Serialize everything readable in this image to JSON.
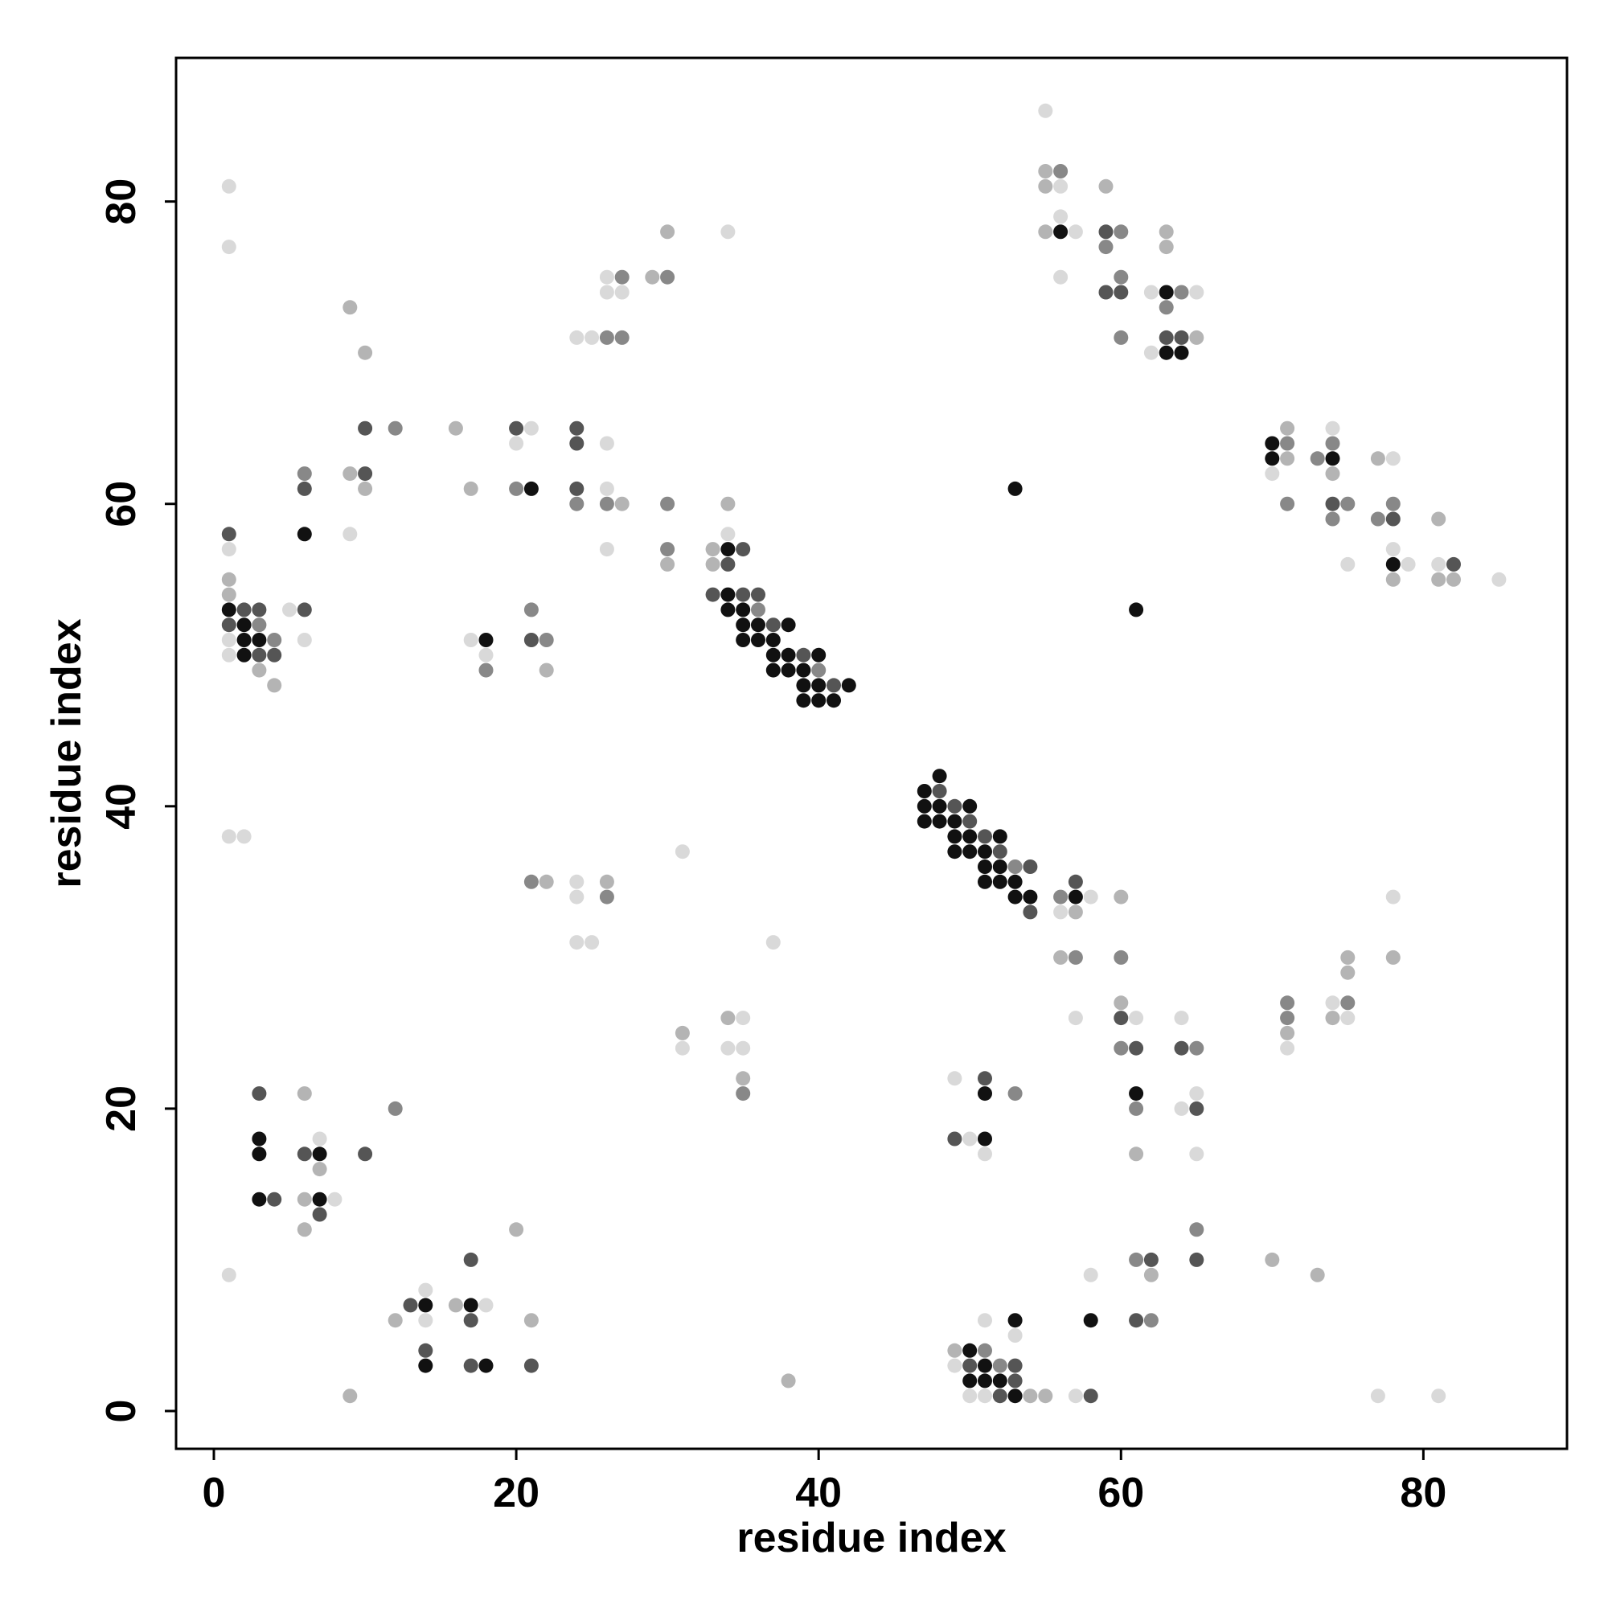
{
  "chart_data": {
    "type": "scatter",
    "title": "",
    "xlabel": "residue index",
    "ylabel": "residue index",
    "xlim": [
      -2.5,
      89.5
    ],
    "ylim": [
      -2.5,
      89.5
    ],
    "xticks": [
      0,
      20,
      40,
      60,
      80
    ],
    "yticks": [
      0,
      20,
      40,
      60,
      80
    ],
    "grid": false,
    "legend": "none",
    "colors": {
      "level_1": "#111111",
      "level_2": "#555555",
      "level_3": "#888888",
      "level_4": "#b4b4b4",
      "level_5": "#d9d9d9"
    },
    "points": [
      [
        1,
        81,
        5
      ],
      [
        1,
        77,
        5
      ],
      [
        1,
        58,
        2
      ],
      [
        1,
        57,
        5
      ],
      [
        1,
        55,
        4
      ],
      [
        1,
        54,
        4
      ],
      [
        1,
        53,
        1
      ],
      [
        1,
        52,
        2
      ],
      [
        1,
        51,
        5
      ],
      [
        1,
        50,
        5
      ],
      [
        1,
        38,
        5
      ],
      [
        1,
        9,
        5
      ],
      [
        2,
        53,
        2
      ],
      [
        2,
        52,
        1
      ],
      [
        2,
        51,
        1
      ],
      [
        2,
        50,
        1
      ],
      [
        2,
        38,
        5
      ],
      [
        3,
        53,
        2
      ],
      [
        3,
        52,
        3
      ],
      [
        3,
        51,
        1
      ],
      [
        3,
        50,
        2
      ],
      [
        3,
        49,
        4
      ],
      [
        3,
        21,
        2
      ],
      [
        3,
        18,
        1
      ],
      [
        3,
        17,
        1
      ],
      [
        3,
        14,
        1
      ],
      [
        4,
        51,
        3
      ],
      [
        4,
        50,
        2
      ],
      [
        4,
        48,
        4
      ],
      [
        4,
        14,
        2
      ],
      [
        5,
        53,
        5
      ],
      [
        6,
        62,
        3
      ],
      [
        6,
        61,
        2
      ],
      [
        6,
        58,
        1
      ],
      [
        6,
        53,
        2
      ],
      [
        6,
        51,
        5
      ],
      [
        6,
        21,
        4
      ],
      [
        6,
        17,
        2
      ],
      [
        6,
        14,
        4
      ],
      [
        6,
        12,
        4
      ],
      [
        7,
        18,
        5
      ],
      [
        7,
        17,
        1
      ],
      [
        7,
        16,
        4
      ],
      [
        7,
        14,
        1
      ],
      [
        7,
        13,
        2
      ],
      [
        8,
        14,
        5
      ],
      [
        9,
        73,
        4
      ],
      [
        9,
        62,
        4
      ],
      [
        9,
        58,
        5
      ],
      [
        9,
        1,
        4
      ],
      [
        10,
        70,
        4
      ],
      [
        10,
        65,
        2
      ],
      [
        10,
        62,
        2
      ],
      [
        10,
        61,
        4
      ],
      [
        10,
        17,
        2
      ],
      [
        12,
        65,
        3
      ],
      [
        12,
        20,
        3
      ],
      [
        12,
        6,
        4
      ],
      [
        13,
        7,
        2
      ],
      [
        14,
        8,
        5
      ],
      [
        14,
        7,
        1
      ],
      [
        14,
        6,
        5
      ],
      [
        14,
        4,
        2
      ],
      [
        14,
        3,
        1
      ],
      [
        16,
        65,
        4
      ],
      [
        16,
        7,
        4
      ],
      [
        17,
        61,
        4
      ],
      [
        17,
        51,
        5
      ],
      [
        17,
        10,
        2
      ],
      [
        17,
        7,
        1
      ],
      [
        17,
        6,
        2
      ],
      [
        17,
        3,
        2
      ],
      [
        18,
        51,
        1
      ],
      [
        18,
        50,
        5
      ],
      [
        18,
        49,
        3
      ],
      [
        18,
        7,
        5
      ],
      [
        18,
        3,
        1
      ],
      [
        20,
        65,
        2
      ],
      [
        20,
        64,
        5
      ],
      [
        20,
        61,
        3
      ],
      [
        20,
        12,
        4
      ],
      [
        21,
        65,
        5
      ],
      [
        21,
        61,
        1
      ],
      [
        21,
        53,
        3
      ],
      [
        21,
        51,
        2
      ],
      [
        21,
        35,
        3
      ],
      [
        21,
        6,
        4
      ],
      [
        21,
        3,
        2
      ],
      [
        22,
        51,
        3
      ],
      [
        22,
        49,
        4
      ],
      [
        22,
        35,
        4
      ],
      [
        24,
        71,
        5
      ],
      [
        24,
        65,
        2
      ],
      [
        24,
        64,
        2
      ],
      [
        24,
        61,
        2
      ],
      [
        24,
        60,
        3
      ],
      [
        24,
        35,
        5
      ],
      [
        24,
        34,
        5
      ],
      [
        24,
        31,
        5
      ],
      [
        25,
        71,
        5
      ],
      [
        25,
        31,
        5
      ],
      [
        26,
        75,
        5
      ],
      [
        26,
        74,
        5
      ],
      [
        26,
        71,
        3
      ],
      [
        26,
        64,
        5
      ],
      [
        26,
        61,
        5
      ],
      [
        26,
        60,
        3
      ],
      [
        26,
        57,
        5
      ],
      [
        26,
        35,
        4
      ],
      [
        26,
        34,
        3
      ],
      [
        27,
        75,
        3
      ],
      [
        27,
        74,
        5
      ],
      [
        27,
        71,
        3
      ],
      [
        27,
        60,
        4
      ],
      [
        29,
        75,
        4
      ],
      [
        30,
        78,
        4
      ],
      [
        30,
        75,
        3
      ],
      [
        30,
        60,
        3
      ],
      [
        30,
        57,
        3
      ],
      [
        30,
        56,
        4
      ],
      [
        31,
        37,
        5
      ],
      [
        31,
        25,
        4
      ],
      [
        31,
        24,
        5
      ],
      [
        33,
        57,
        4
      ],
      [
        33,
        56,
        4
      ],
      [
        33,
        54,
        2
      ],
      [
        34,
        78,
        5
      ],
      [
        34,
        60,
        4
      ],
      [
        34,
        58,
        5
      ],
      [
        34,
        57,
        1
      ],
      [
        34,
        56,
        2
      ],
      [
        34,
        54,
        1
      ],
      [
        34,
        53,
        1
      ],
      [
        34,
        26,
        4
      ],
      [
        34,
        24,
        5
      ],
      [
        35,
        57,
        2
      ],
      [
        35,
        54,
        2
      ],
      [
        35,
        53,
        1
      ],
      [
        35,
        52,
        1
      ],
      [
        35,
        51,
        1
      ],
      [
        35,
        26,
        5
      ],
      [
        35,
        24,
        5
      ],
      [
        35,
        22,
        4
      ],
      [
        35,
        21,
        3
      ],
      [
        36,
        54,
        2
      ],
      [
        36,
        53,
        3
      ],
      [
        36,
        52,
        1
      ],
      [
        36,
        51,
        1
      ],
      [
        37,
        52,
        2
      ],
      [
        37,
        51,
        1
      ],
      [
        37,
        50,
        1
      ],
      [
        37,
        49,
        1
      ],
      [
        37,
        31,
        5
      ],
      [
        38,
        52,
        1
      ],
      [
        38,
        50,
        1
      ],
      [
        38,
        49,
        1
      ],
      [
        38,
        2,
        4
      ],
      [
        39,
        50,
        2
      ],
      [
        39,
        49,
        1
      ],
      [
        39,
        48,
        1
      ],
      [
        39,
        47,
        1
      ],
      [
        40,
        50,
        1
      ],
      [
        40,
        49,
        3
      ],
      [
        40,
        48,
        1
      ],
      [
        40,
        47,
        1
      ],
      [
        41,
        48,
        2
      ],
      [
        41,
        47,
        1
      ],
      [
        42,
        48,
        1
      ],
      [
        47,
        41,
        1
      ],
      [
        47,
        40,
        1
      ],
      [
        47,
        39,
        1
      ],
      [
        48,
        42,
        1
      ],
      [
        48,
        41,
        2
      ],
      [
        48,
        40,
        1
      ],
      [
        48,
        39,
        1
      ],
      [
        49,
        40,
        2
      ],
      [
        49,
        39,
        1
      ],
      [
        49,
        38,
        1
      ],
      [
        49,
        37,
        1
      ],
      [
        49,
        22,
        5
      ],
      [
        49,
        18,
        2
      ],
      [
        49,
        4,
        4
      ],
      [
        49,
        3,
        5
      ],
      [
        50,
        40,
        1
      ],
      [
        50,
        39,
        2
      ],
      [
        50,
        38,
        1
      ],
      [
        50,
        37,
        1
      ],
      [
        50,
        18,
        5
      ],
      [
        50,
        4,
        1
      ],
      [
        50,
        3,
        2
      ],
      [
        50,
        2,
        1
      ],
      [
        50,
        1,
        5
      ],
      [
        51,
        38,
        2
      ],
      [
        51,
        37,
        1
      ],
      [
        51,
        36,
        1
      ],
      [
        51,
        35,
        1
      ],
      [
        51,
        22,
        2
      ],
      [
        51,
        21,
        1
      ],
      [
        51,
        18,
        1
      ],
      [
        51,
        17,
        5
      ],
      [
        51,
        6,
        5
      ],
      [
        51,
        4,
        3
      ],
      [
        51,
        3,
        1
      ],
      [
        51,
        2,
        1
      ],
      [
        51,
        1,
        5
      ],
      [
        52,
        38,
        1
      ],
      [
        52,
        37,
        2
      ],
      [
        52,
        36,
        1
      ],
      [
        52,
        35,
        1
      ],
      [
        52,
        3,
        3
      ],
      [
        52,
        2,
        1
      ],
      [
        52,
        1,
        2
      ],
      [
        53,
        61,
        1
      ],
      [
        53,
        36,
        3
      ],
      [
        53,
        35,
        1
      ],
      [
        53,
        34,
        1
      ],
      [
        53,
        21,
        3
      ],
      [
        53,
        6,
        1
      ],
      [
        53,
        5,
        5
      ],
      [
        53,
        3,
        2
      ],
      [
        53,
        2,
        2
      ],
      [
        53,
        1,
        1
      ],
      [
        54,
        36,
        2
      ],
      [
        54,
        34,
        1
      ],
      [
        54,
        33,
        2
      ],
      [
        54,
        1,
        4
      ],
      [
        55,
        86,
        5
      ],
      [
        55,
        82,
        4
      ],
      [
        55,
        81,
        4
      ],
      [
        55,
        78,
        4
      ],
      [
        55,
        1,
        4
      ],
      [
        56,
        82,
        3
      ],
      [
        56,
        81,
        5
      ],
      [
        56,
        79,
        5
      ],
      [
        56,
        78,
        1
      ],
      [
        56,
        75,
        5
      ],
      [
        56,
        34,
        3
      ],
      [
        56,
        33,
        5
      ],
      [
        56,
        30,
        4
      ],
      [
        57,
        78,
        5
      ],
      [
        57,
        35,
        2
      ],
      [
        57,
        34,
        1
      ],
      [
        57,
        33,
        4
      ],
      [
        57,
        30,
        3
      ],
      [
        57,
        26,
        5
      ],
      [
        57,
        1,
        5
      ],
      [
        58,
        34,
        5
      ],
      [
        58,
        9,
        5
      ],
      [
        58,
        6,
        1
      ],
      [
        58,
        1,
        2
      ],
      [
        59,
        81,
        4
      ],
      [
        59,
        78,
        2
      ],
      [
        59,
        77,
        3
      ],
      [
        59,
        74,
        2
      ],
      [
        60,
        78,
        3
      ],
      [
        60,
        75,
        3
      ],
      [
        60,
        74,
        2
      ],
      [
        60,
        71,
        3
      ],
      [
        60,
        34,
        4
      ],
      [
        60,
        30,
        3
      ],
      [
        60,
        27,
        4
      ],
      [
        60,
        26,
        2
      ],
      [
        60,
        24,
        3
      ],
      [
        61,
        53,
        1
      ],
      [
        61,
        26,
        5
      ],
      [
        61,
        24,
        2
      ],
      [
        61,
        21,
        1
      ],
      [
        61,
        20,
        3
      ],
      [
        61,
        17,
        4
      ],
      [
        61,
        10,
        3
      ],
      [
        61,
        6,
        2
      ],
      [
        62,
        74,
        5
      ],
      [
        62,
        70,
        5
      ],
      [
        62,
        10,
        2
      ],
      [
        62,
        9,
        4
      ],
      [
        62,
        6,
        3
      ],
      [
        63,
        78,
        4
      ],
      [
        63,
        77,
        4
      ],
      [
        63,
        74,
        1
      ],
      [
        63,
        73,
        3
      ],
      [
        63,
        71,
        2
      ],
      [
        63,
        70,
        1
      ],
      [
        64,
        74,
        3
      ],
      [
        64,
        71,
        2
      ],
      [
        64,
        70,
        1
      ],
      [
        64,
        26,
        5
      ],
      [
        64,
        24,
        2
      ],
      [
        64,
        20,
        5
      ],
      [
        65,
        74,
        5
      ],
      [
        65,
        71,
        4
      ],
      [
        65,
        24,
        3
      ],
      [
        65,
        21,
        5
      ],
      [
        65,
        20,
        2
      ],
      [
        65,
        17,
        5
      ],
      [
        65,
        12,
        3
      ],
      [
        65,
        10,
        2
      ],
      [
        70,
        64,
        1
      ],
      [
        70,
        63,
        1
      ],
      [
        70,
        62,
        5
      ],
      [
        70,
        10,
        4
      ],
      [
        71,
        65,
        4
      ],
      [
        71,
        64,
        3
      ],
      [
        71,
        63,
        4
      ],
      [
        71,
        60,
        3
      ],
      [
        71,
        27,
        3
      ],
      [
        71,
        26,
        3
      ],
      [
        71,
        25,
        4
      ],
      [
        71,
        24,
        5
      ],
      [
        73,
        63,
        3
      ],
      [
        73,
        9,
        4
      ],
      [
        74,
        65,
        5
      ],
      [
        74,
        64,
        3
      ],
      [
        74,
        63,
        1
      ],
      [
        74,
        62,
        4
      ],
      [
        74,
        60,
        2
      ],
      [
        74,
        59,
        3
      ],
      [
        74,
        27,
        5
      ],
      [
        74,
        26,
        4
      ],
      [
        75,
        60,
        3
      ],
      [
        75,
        56,
        5
      ],
      [
        75,
        30,
        4
      ],
      [
        75,
        29,
        4
      ],
      [
        75,
        27,
        3
      ],
      [
        75,
        26,
        5
      ],
      [
        77,
        63,
        4
      ],
      [
        77,
        59,
        3
      ],
      [
        77,
        1,
        5
      ],
      [
        78,
        63,
        5
      ],
      [
        78,
        60,
        3
      ],
      [
        78,
        59,
        2
      ],
      [
        78,
        57,
        5
      ],
      [
        78,
        56,
        1
      ],
      [
        78,
        55,
        4
      ],
      [
        78,
        34,
        5
      ],
      [
        78,
        30,
        4
      ],
      [
        79,
        56,
        5
      ],
      [
        81,
        59,
        4
      ],
      [
        81,
        56,
        5
      ],
      [
        81,
        55,
        4
      ],
      [
        81,
        1,
        5
      ],
      [
        82,
        56,
        2
      ],
      [
        82,
        55,
        4
      ],
      [
        85,
        55,
        5
      ]
    ]
  }
}
